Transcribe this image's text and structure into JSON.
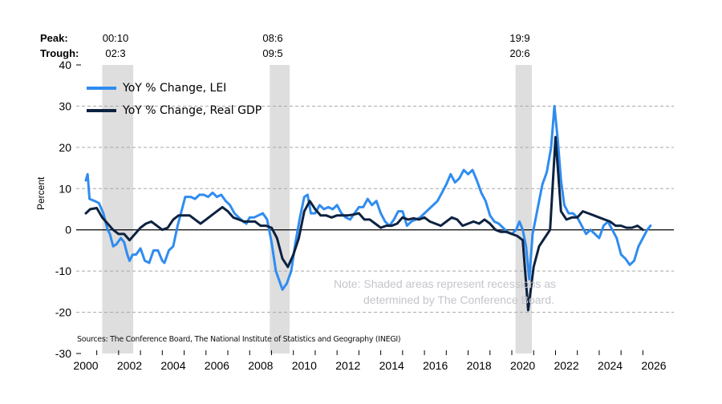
{
  "chart_data": {
    "type": "line",
    "title": "",
    "xlabel": "",
    "ylabel": "Percent",
    "xlim": [
      2000,
      2026
    ],
    "ylim": [
      -30,
      40
    ],
    "yticks": [
      40,
      30,
      20,
      10,
      0,
      -10,
      -20,
      -30
    ],
    "xticks": [
      2000,
      2002,
      2004,
      2006,
      2008,
      2010,
      2012,
      2014,
      2016,
      2018,
      2020,
      2022,
      2024,
      2026
    ],
    "grid": "horizontal dashed",
    "legend_position": "top-left",
    "peak_label": "Peak:",
    "trough_label": "Trough:",
    "recessions": [
      {
        "peak": "00:10",
        "trough": "02:3",
        "start": 2000.75,
        "end": 2002.17
      },
      {
        "peak": "08:6",
        "trough": "09:5",
        "start": 2008.42,
        "end": 2009.33
      },
      {
        "peak": "19:9",
        "trough": "20:6",
        "start": 2019.67,
        "end": 2020.42
      }
    ],
    "note_line1": "Note: Shaded areas represent recessions as",
    "note_line2": "determined by The Conference Board.",
    "sources": "Sources: The Conference Board, The National Institute of Statistics and Geography (INEGI)",
    "series": [
      {
        "name": "YoY % Change, LEI",
        "color": "#2f8cf0",
        "x": [
          2000.0,
          2000.08,
          2000.17,
          2000.4,
          2000.6,
          2000.8,
          2001.0,
          2001.1,
          2001.25,
          2001.4,
          2001.6,
          2001.75,
          2001.9,
          2002.0,
          2002.15,
          2002.3,
          2002.5,
          2002.7,
          2002.9,
          2003.1,
          2003.3,
          2003.5,
          2003.6,
          2003.8,
          2004.0,
          2004.2,
          2004.35,
          2004.55,
          2004.8,
          2005.0,
          2005.2,
          2005.4,
          2005.6,
          2005.8,
          2006.0,
          2006.2,
          2006.4,
          2006.6,
          2006.8,
          2007.0,
          2007.2,
          2007.35,
          2007.5,
          2007.7,
          2007.9,
          2008.1,
          2008.3,
          2008.5,
          2008.7,
          2008.9,
          2009.0,
          2009.2,
          2009.4,
          2009.6,
          2009.8,
          2010.0,
          2010.15,
          2010.3,
          2010.5,
          2010.7,
          2010.9,
          2011.1,
          2011.3,
          2011.5,
          2011.7,
          2011.9,
          2012.1,
          2012.3,
          2012.5,
          2012.7,
          2012.9,
          2013.1,
          2013.3,
          2013.5,
          2013.7,
          2013.9,
          2014.1,
          2014.3,
          2014.5,
          2014.7,
          2014.9,
          2015.1,
          2015.3,
          2015.5,
          2015.7,
          2015.9,
          2016.1,
          2016.3,
          2016.5,
          2016.7,
          2016.9,
          2017.1,
          2017.3,
          2017.5,
          2017.7,
          2017.9,
          2018.1,
          2018.3,
          2018.5,
          2018.7,
          2018.9,
          2019.1,
          2019.3,
          2019.5,
          2019.7,
          2019.85,
          2020.0,
          2020.15,
          2020.3,
          2020.45,
          2020.6,
          2020.75,
          2020.9,
          2021.1,
          2021.3,
          2021.45,
          2021.6,
          2021.75,
          2021.9,
          2022.1,
          2022.3,
          2022.5,
          2022.7,
          2022.9,
          2023.1,
          2023.3,
          2023.5,
          2023.7,
          2023.9,
          2024.1,
          2024.3,
          2024.5,
          2024.7,
          2024.9,
          2025.1,
          2025.3,
          2025.5,
          2025.7,
          2025.85
        ],
        "values": [
          12,
          13.5,
          7.5,
          7,
          6.5,
          4,
          0,
          -1,
          -4,
          -3.5,
          -2,
          -3,
          -6,
          -7.5,
          -6,
          -6,
          -4.5,
          -7.5,
          -8,
          -5,
          -5,
          -7.5,
          -8,
          -5,
          -4,
          1,
          4,
          8,
          8,
          7.5,
          8.5,
          8.5,
          8,
          9,
          8,
          8.5,
          7,
          6,
          4,
          3,
          2,
          1.5,
          3,
          3,
          3.5,
          4,
          2.5,
          -3,
          -10,
          -13,
          -14.5,
          -13,
          -10,
          -3,
          3,
          8,
          8.5,
          4,
          4,
          6,
          5,
          5.5,
          5,
          6,
          4,
          3,
          2.5,
          4,
          5.5,
          5.5,
          7.5,
          6,
          7,
          4,
          2,
          1,
          2.5,
          4.5,
          4.5,
          1,
          2,
          2.5,
          3,
          4,
          5,
          6,
          7,
          9,
          11,
          13.5,
          11.5,
          12.5,
          14.5,
          13.5,
          14.5,
          12,
          9,
          7,
          3.5,
          2,
          1.5,
          0.5,
          -0.5,
          -1,
          0,
          2,
          0,
          -4,
          -12,
          -1,
          3,
          7,
          11,
          14,
          20,
          30,
          22,
          12,
          6,
          4,
          4,
          3,
          1,
          -1,
          0,
          -1,
          -2,
          1,
          2,
          0,
          -2,
          -6,
          -7,
          -8.5,
          -7.5,
          -4,
          -2,
          0,
          1
        ]
      },
      {
        "name": "YoY % Change, Real GDP",
        "color": "#0d2240",
        "x": [
          2000.0,
          2000.2,
          2000.5,
          2000.75,
          2001.0,
          2001.25,
          2001.5,
          2001.75,
          2002.0,
          2002.25,
          2002.5,
          2002.75,
          2003.0,
          2003.25,
          2003.5,
          2003.75,
          2004.0,
          2004.25,
          2004.5,
          2004.75,
          2005.0,
          2005.25,
          2005.5,
          2005.75,
          2006.0,
          2006.25,
          2006.5,
          2006.75,
          2007.0,
          2007.25,
          2007.5,
          2007.75,
          2008.0,
          2008.25,
          2008.5,
          2008.75,
          2009.0,
          2009.25,
          2009.5,
          2009.75,
          2010.0,
          2010.25,
          2010.5,
          2010.75,
          2011.0,
          2011.25,
          2011.5,
          2011.75,
          2012.0,
          2012.25,
          2012.5,
          2012.75,
          2013.0,
          2013.25,
          2013.5,
          2013.75,
          2014.0,
          2014.25,
          2014.5,
          2014.75,
          2015.0,
          2015.25,
          2015.5,
          2015.75,
          2016.0,
          2016.25,
          2016.5,
          2016.75,
          2017.0,
          2017.25,
          2017.5,
          2017.75,
          2018.0,
          2018.25,
          2018.5,
          2018.75,
          2019.0,
          2019.25,
          2019.5,
          2019.75,
          2020.0,
          2020.25,
          2020.5,
          2020.75,
          2021.0,
          2021.25,
          2021.5,
          2021.75,
          2022.0,
          2022.25,
          2022.5,
          2022.75,
          2023.0,
          2023.25,
          2023.5,
          2023.75,
          2024.0,
          2024.25,
          2024.5,
          2024.75,
          2025.0,
          2025.25,
          2025.5
        ],
        "values": [
          4,
          5,
          5.3,
          3,
          1.5,
          0,
          -1,
          -1,
          -2.5,
          -1,
          0.5,
          1.5,
          2,
          1,
          0,
          0.5,
          2.5,
          3.5,
          3.5,
          3.5,
          2.5,
          1.5,
          2.5,
          3.5,
          4.5,
          5.5,
          4.5,
          3,
          2.5,
          2,
          2,
          2,
          1,
          1,
          0.5,
          -2,
          -7,
          -9,
          -6,
          -2,
          4.5,
          7,
          5,
          3.5,
          3.5,
          3,
          3.5,
          3.5,
          3.5,
          3.7,
          4,
          2.5,
          2.5,
          1.5,
          0.5,
          1,
          1,
          1.5,
          3,
          2.5,
          2.8,
          2.5,
          3,
          2,
          1.5,
          1,
          2,
          3,
          2.5,
          1,
          1.5,
          2,
          1.5,
          2.5,
          1.5,
          0,
          -0.5,
          -0.5,
          -1,
          -1.5,
          -2.5,
          -19.5,
          -9,
          -4,
          -2,
          0,
          22.5,
          4.5,
          2.5,
          3,
          3,
          4.5,
          4,
          3.5,
          3,
          2.5,
          2,
          1,
          1,
          0.5,
          0.5,
          1,
          0
        ]
      }
    ]
  }
}
